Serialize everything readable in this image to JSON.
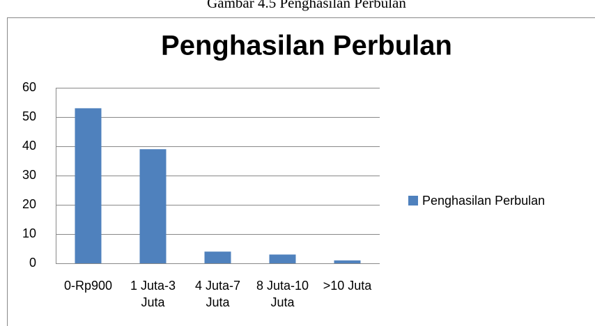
{
  "caption": "Gambar 4.5  Penghasilan Perbulan",
  "chart_data": {
    "type": "bar",
    "title": "Penghasilan Perbulan",
    "categories": [
      "0-Rp900",
      "1 Juta-3 Juta",
      "4 Juta-7 Juta",
      "8 Juta-10 Juta",
      ">10 Juta"
    ],
    "series": [
      {
        "name": "Penghasilan Perbulan",
        "color": "#4f81bd",
        "values": [
          53,
          39,
          4,
          3,
          1
        ]
      }
    ],
    "ylim": [
      0,
      60
    ],
    "yticks": [
      0,
      10,
      20,
      30,
      40,
      50,
      60
    ],
    "grid": true,
    "legend": "right"
  }
}
